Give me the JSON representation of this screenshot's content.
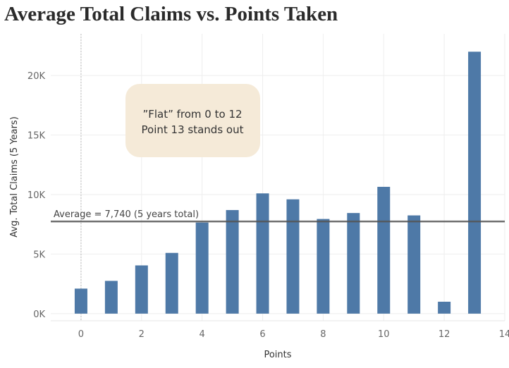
{
  "chart_data": {
    "type": "bar",
    "title": "Average Total Claims vs. Points Taken",
    "xlabel": "Points",
    "ylabel": "Avg. Total Claims (5 Years)",
    "xlim": [
      -1,
      14
    ],
    "ylim": [
      -600,
      23500
    ],
    "x_ticks": [
      0,
      2,
      4,
      6,
      8,
      10,
      12,
      14
    ],
    "x_tick_labels": [
      "0",
      "2",
      "4",
      "6",
      "8",
      "10",
      "12",
      "14"
    ],
    "y_ticks": [
      0,
      5000,
      10000,
      15000,
      20000
    ],
    "y_tick_labels": [
      "0K",
      "5K",
      "10K",
      "15K",
      "20K"
    ],
    "x": [
      0,
      1,
      2,
      3,
      4,
      5,
      6,
      7,
      8,
      9,
      10,
      11,
      12,
      13
    ],
    "values": [
      2100,
      2750,
      4050,
      5100,
      7650,
      8700,
      10100,
      9600,
      7950,
      8450,
      10650,
      8250,
      1000,
      22000
    ],
    "bar_color": "#4e79a7",
    "reference_line": {
      "value": 7740,
      "label": "Average = 7,740 (5 years total)"
    },
    "annotation": {
      "lines": [
        "”Flat” from 0 to 12",
        "Point 13 stands out"
      ],
      "fill": "#f5ead8"
    },
    "grid": true
  }
}
